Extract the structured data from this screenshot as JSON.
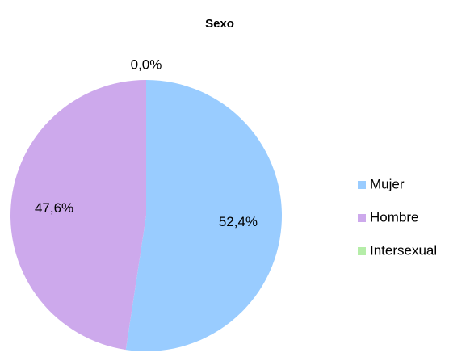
{
  "chart_data": {
    "type": "pie",
    "title": "Sexo",
    "categories": [
      "Mujer",
      "Hombre",
      "Intersexual"
    ],
    "values": [
      52.4,
      47.6,
      0.0
    ],
    "value_labels": [
      "52,4%",
      "47,6%",
      "0,0%"
    ],
    "colors": [
      "#99ccff",
      "#cda9ec",
      "#b5eda8"
    ],
    "legend": "right"
  }
}
